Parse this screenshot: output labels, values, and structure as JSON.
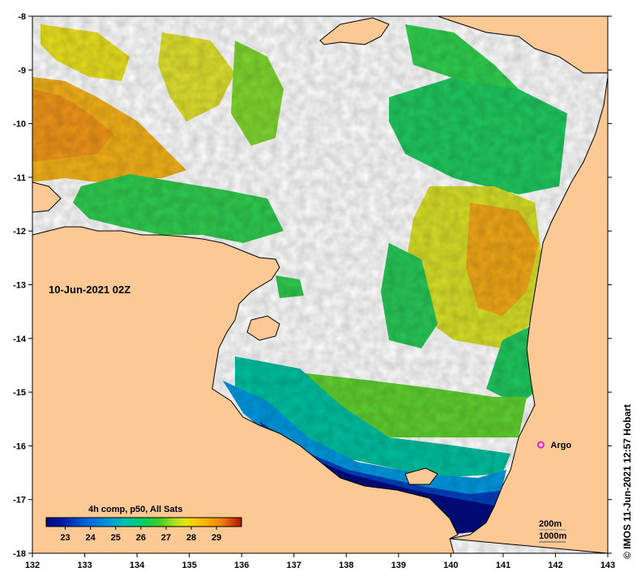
{
  "map": {
    "date_label": "10-Jun-2021 02Z",
    "credit": "© IMOS 11-Jun-2021 12:57 Hobart",
    "argo_label": "Argo",
    "argo": {
      "lon": 141.72,
      "lat": -15.98
    },
    "colorbar_title": "4h comp, p50, All Sats",
    "colorbar_ticks": [
      "23",
      "24",
      "25",
      "26",
      "27",
      "28",
      "29"
    ],
    "contour_labels": [
      "200m",
      "1000m"
    ],
    "lon_ticks": [
      "132",
      "133",
      "134",
      "135",
      "136",
      "137",
      "138",
      "139",
      "140",
      "141",
      "142",
      "143"
    ],
    "lat_ticks": [
      "-8",
      "-9",
      "-10",
      "-11",
      "-12",
      "-13",
      "-14",
      "-15",
      "-16",
      "-17",
      "-18"
    ],
    "lon_range": [
      132,
      143
    ],
    "lat_range": [
      -18,
      -8
    ],
    "colors": {
      "land": "#fcc894",
      "water_nodata": "#ffffff",
      "argo_marker": "#e020e0",
      "sst_scale": [
        "#000a7a",
        "#0018a8",
        "#0060d8",
        "#0090e0",
        "#00c0b0",
        "#00d060",
        "#40d020",
        "#b0e020",
        "#f0e010",
        "#f8b000",
        "#f08010",
        "#b01000"
      ]
    }
  }
}
